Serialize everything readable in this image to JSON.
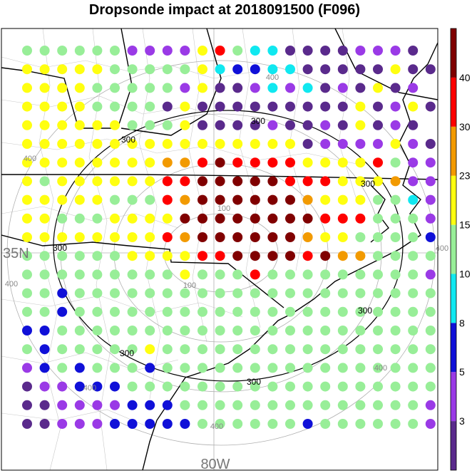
{
  "title": "Dropsonde impact at 2018091500 (F096)",
  "lat_label": "35N",
  "lon_label": "80W",
  "ring_labels": {
    "r100": "100",
    "r300": "300",
    "r400": "400"
  },
  "colorbar": {
    "levels": [
      "3",
      "5",
      "8",
      "10",
      "15",
      "23",
      "30",
      "40"
    ],
    "colors": [
      "#5a2a8c",
      "#9a3ae6",
      "#1010d8",
      "#10e8f0",
      "#98ee98",
      "#ffff10",
      "#f29a00",
      "#ff0000",
      "#800000"
    ]
  },
  "grid": {
    "rows": [
      "44444488889b45577778887",
      "99999444449d665577777977",
      "99994444489778585787978",
      "999944447977777777797897",
      "99999944497777877879787",
      "999999999999999978888987",
      "99999999aabcbbbb9999b4885",
      "94999999bbcccccbbb999a888",
      "99999444bacccccca999445822",
      "994449999ccccccccbbb44422",
      "99999999bacccccca994444322",
      "4444449999bbccccbcaa44444",
      "4444444449444b4444444442",
      "44344444444444444444444444",
      "44344444444444444444444444",
      "3344444444444444444444442",
      "43444449444444444444444444",
      "2343444344444444444444444",
      "1223334444444444444444443",
      "112222333444444444444448",
      "1122233333444444344444488"
    ]
  }
}
